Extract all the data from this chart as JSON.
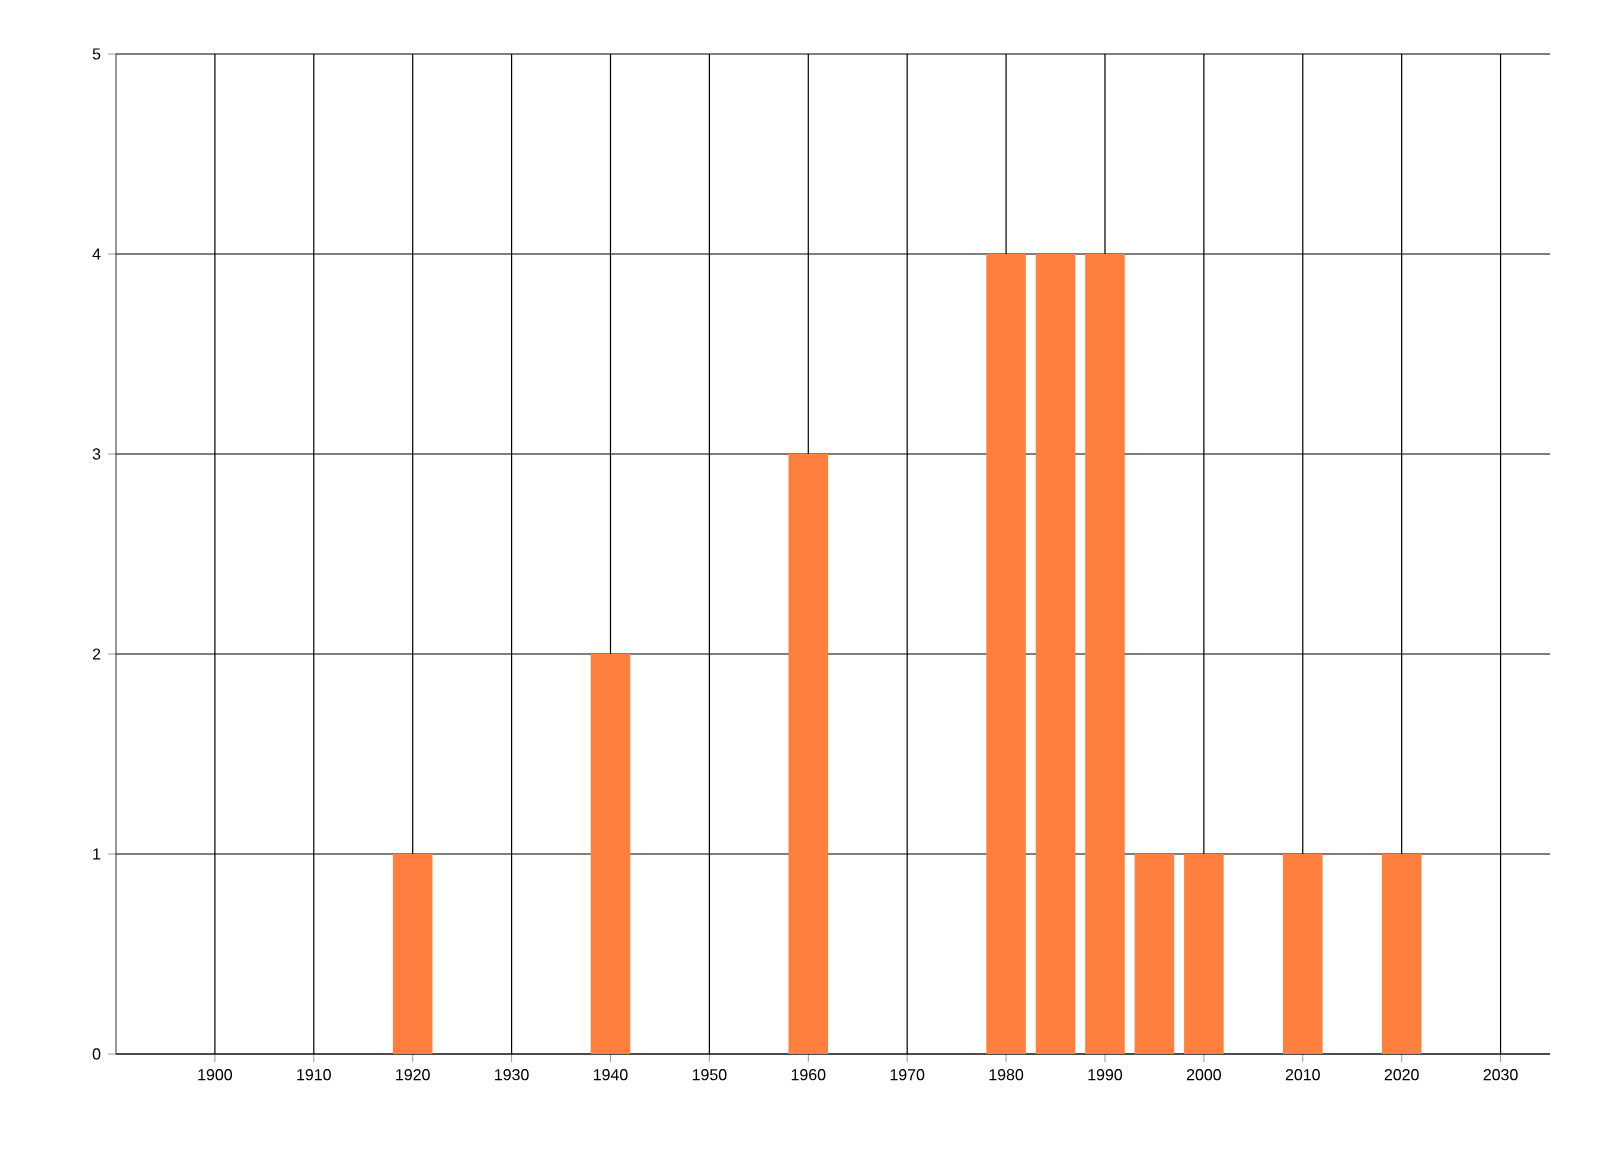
{
  "chart_data": {
    "type": "bar",
    "x": [
      1920,
      1940,
      1960,
      1980,
      1985,
      1990,
      1995,
      2000,
      2010,
      2020
    ],
    "values": [
      1,
      2,
      3,
      4,
      4,
      4,
      1,
      1,
      1,
      1
    ],
    "color": "#ff7f3f",
    "xlim": [
      1890,
      2035
    ],
    "ylim": [
      0,
      5
    ],
    "xticks": [
      1900,
      1910,
      1920,
      1930,
      1940,
      1950,
      1960,
      1970,
      1980,
      1990,
      2000,
      2010,
      2020,
      2030
    ],
    "yticks": [
      0,
      1,
      2,
      3,
      4,
      5
    ],
    "grid": true
  }
}
